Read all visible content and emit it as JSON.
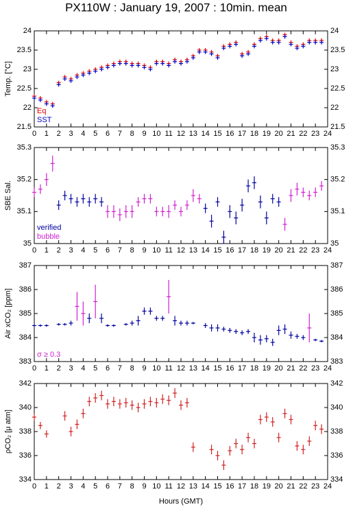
{
  "chart_data": [
    {
      "type": "scatter",
      "title": "PX110W : January 19, 2007 : 10min. mean",
      "ylabel": "Temp. [°C]",
      "x": [
        0,
        0.5,
        1,
        1.5,
        2,
        2.5,
        3,
        3.5,
        4,
        4.5,
        5,
        5.5,
        6,
        6.5,
        7,
        7.5,
        8,
        8.5,
        9,
        9.5,
        10,
        10.5,
        11,
        11.5,
        12,
        12.5,
        13,
        13.5,
        14,
        14.5,
        15,
        15.5,
        16,
        16.5,
        17,
        17.5,
        18,
        18.5,
        19,
        19.5,
        20,
        20.5,
        21,
        21.5,
        22,
        22.5,
        23,
        23.5
      ],
      "xlim": [
        0,
        24
      ],
      "xticks": [
        0,
        1,
        2,
        3,
        4,
        5,
        6,
        7,
        8,
        9,
        10,
        11,
        12,
        13,
        14,
        15,
        16,
        17,
        18,
        19,
        20,
        21,
        22,
        23,
        24
      ],
      "ylim": [
        21.5,
        24
      ],
      "yticks": [
        21.5,
        22,
        22.5,
        23,
        23.5,
        24
      ],
      "series": [
        {
          "name": "Eq",
          "color": "#e00000",
          "values": [
            22.3,
            22.25,
            22.15,
            22.1,
            22.65,
            22.8,
            22.75,
            22.85,
            22.9,
            22.95,
            23.0,
            23.05,
            23.1,
            23.15,
            23.2,
            23.2,
            23.15,
            23.15,
            23.1,
            23.05,
            23.2,
            23.2,
            23.15,
            23.25,
            23.2,
            23.25,
            23.35,
            23.5,
            23.5,
            23.45,
            23.35,
            23.6,
            23.65,
            23.7,
            23.4,
            23.45,
            23.65,
            23.8,
            23.85,
            23.75,
            23.75,
            23.9,
            23.7,
            23.6,
            23.65,
            23.75,
            23.75,
            23.75
          ]
        },
        {
          "name": "SST",
          "color": "#0000c0",
          "values": [
            22.25,
            22.2,
            22.1,
            22.05,
            22.6,
            22.75,
            22.7,
            22.8,
            22.85,
            22.9,
            22.95,
            23.0,
            23.05,
            23.1,
            23.15,
            23.15,
            23.1,
            23.1,
            23.05,
            23.0,
            23.15,
            23.15,
            23.1,
            23.2,
            23.15,
            23.2,
            23.3,
            23.45,
            23.45,
            23.4,
            23.3,
            23.55,
            23.6,
            23.65,
            23.35,
            23.4,
            23.6,
            23.75,
            23.8,
            23.7,
            23.7,
            23.85,
            23.65,
            23.55,
            23.6,
            23.7,
            23.7,
            23.7
          ]
        }
      ]
    },
    {
      "type": "scatter",
      "ylabel": "SBE Sal.",
      "x": [
        0,
        0.5,
        1,
        1.5,
        2,
        2.5,
        3,
        3.5,
        4,
        4.5,
        5,
        5.5,
        6,
        6.5,
        7,
        7.5,
        8,
        8.5,
        9,
        9.5,
        10,
        10.5,
        11,
        11.5,
        12,
        12.5,
        13,
        13.5,
        14,
        14.5,
        15,
        15.5,
        16,
        16.5,
        17,
        17.5,
        18,
        18.5,
        19,
        19.5,
        20,
        20.5,
        21,
        21.5,
        22,
        22.5,
        23,
        23.5
      ],
      "xlim": [
        0,
        24
      ],
      "xticks": [
        0,
        1,
        2,
        3,
        4,
        5,
        6,
        7,
        8,
        9,
        10,
        11,
        12,
        13,
        14,
        15,
        16,
        17,
        18,
        19,
        20,
        21,
        22,
        23,
        24
      ],
      "ylim": [
        35,
        35.3
      ],
      "yticks": [
        35,
        35.1,
        35.2,
        35.3
      ],
      "yerr": [
        0.015,
        0.015,
        0.02,
        0.025,
        0.015,
        0.015,
        0.015,
        0.015,
        0.015,
        0.015,
        0.015,
        0.015,
        0.02,
        0.02,
        0.02,
        0.02,
        0.02,
        0.015,
        0.015,
        0.015,
        0.015,
        0.015,
        0.02,
        0.015,
        0.015,
        0.015,
        0.02,
        0.015,
        0.015,
        0.02,
        0.015,
        0.02,
        0.02,
        0.02,
        0.02,
        0.02,
        0.02,
        0.02,
        0.02,
        0.015,
        0.015,
        0.02,
        0.02,
        0.02,
        0.015,
        0.015,
        0.015,
        0.015
      ],
      "series": [
        {
          "name": "verified",
          "color": "#0000a0",
          "values": [
            null,
            null,
            null,
            null,
            35.12,
            35.15,
            35.14,
            35.13,
            35.14,
            35.13,
            35.14,
            35.13,
            null,
            null,
            null,
            null,
            null,
            null,
            null,
            null,
            null,
            null,
            null,
            null,
            null,
            null,
            null,
            null,
            35.11,
            35.07,
            35.13,
            35.02,
            35.1,
            35.08,
            35.12,
            35.18,
            35.19,
            35.13,
            35.08,
            35.14,
            35.13,
            null,
            null,
            null,
            null,
            null,
            null,
            null
          ]
        },
        {
          "name": "bubble",
          "color": "#d020d0",
          "values": [
            35.16,
            35.17,
            35.2,
            35.25,
            null,
            null,
            null,
            null,
            null,
            null,
            null,
            null,
            35.1,
            35.1,
            35.09,
            35.1,
            35.1,
            35.13,
            35.14,
            35.14,
            35.1,
            35.1,
            35.1,
            35.12,
            35.1,
            35.12,
            35.15,
            35.14,
            null,
            null,
            null,
            null,
            null,
            null,
            null,
            null,
            null,
            null,
            null,
            null,
            null,
            35.06,
            35.15,
            35.17,
            35.16,
            35.15,
            35.16,
            35.18
          ]
        }
      ]
    },
    {
      "type": "scatter",
      "ylabel": "Air xCO₂ [ppm]",
      "x": [
        0,
        0.5,
        1,
        1.5,
        2,
        2.5,
        3,
        3.5,
        4,
        4.5,
        5,
        5.5,
        6,
        6.5,
        7,
        7.5,
        8,
        8.5,
        9,
        9.5,
        10,
        10.5,
        11,
        11.5,
        12,
        12.5,
        13,
        13.5,
        14,
        14.5,
        15,
        15.5,
        16,
        16.5,
        17,
        17.5,
        18,
        18.5,
        19,
        19.5,
        20,
        20.5,
        21,
        21.5,
        22,
        22.5,
        23,
        23.5
      ],
      "xlim": [
        0,
        24
      ],
      "xticks": [
        0,
        1,
        2,
        3,
        4,
        5,
        6,
        7,
        8,
        9,
        10,
        11,
        12,
        13,
        14,
        15,
        16,
        17,
        18,
        19,
        20,
        21,
        22,
        23,
        24
      ],
      "ylim": [
        383,
        387
      ],
      "yticks": [
        383,
        384,
        385,
        386,
        387
      ],
      "yerr": [
        0.05,
        0.05,
        0.05,
        null,
        0.05,
        0.05,
        0.1,
        0.6,
        0.5,
        0.2,
        0.7,
        0.2,
        0.05,
        0.05,
        null,
        0.05,
        0.1,
        0.2,
        0.15,
        0.15,
        0.1,
        0.1,
        0.7,
        0.2,
        0.1,
        0.1,
        0.05,
        null,
        0.1,
        0.15,
        0.15,
        0.1,
        0.1,
        0.1,
        0.1,
        0.1,
        0.2,
        0.2,
        0.15,
        0.15,
        0.2,
        0.2,
        0.15,
        0.1,
        0.1,
        0.6,
        0.05,
        0.05
      ],
      "series": [
        {
          "color": "#0000a0",
          "values": [
            384.5,
            384.5,
            384.5,
            null,
            384.55,
            384.55,
            384.6,
            null,
            null,
            384.8,
            null,
            384.8,
            384.5,
            384.5,
            null,
            384.55,
            384.6,
            384.7,
            385.1,
            385.1,
            384.8,
            384.8,
            null,
            384.7,
            384.6,
            384.6,
            384.6,
            null,
            384.5,
            384.4,
            384.4,
            384.35,
            384.3,
            384.25,
            384.2,
            384.25,
            384.0,
            383.9,
            383.95,
            383.8,
            384.3,
            384.35,
            384.1,
            384.05,
            384.0,
            null,
            383.9,
            383.85
          ]
        },
        {
          "name": "σ ≥ 0.3",
          "color": "#d020d0",
          "values": [
            null,
            null,
            null,
            null,
            null,
            null,
            null,
            385.3,
            385.0,
            null,
            385.5,
            null,
            null,
            null,
            null,
            null,
            null,
            null,
            null,
            null,
            null,
            null,
            385.7,
            null,
            null,
            null,
            null,
            null,
            null,
            null,
            null,
            null,
            null,
            null,
            null,
            null,
            null,
            null,
            null,
            null,
            null,
            null,
            null,
            null,
            null,
            384.4,
            null,
            null
          ]
        }
      ]
    },
    {
      "type": "scatter",
      "ylabel": "ρCO₂ [μ atm]",
      "xlabel": "Hours (GMT)",
      "x": [
        0,
        0.5,
        1,
        1.5,
        2,
        2.5,
        3,
        3.5,
        4,
        4.5,
        5,
        5.5,
        6,
        6.5,
        7,
        7.5,
        8,
        8.5,
        9,
        9.5,
        10,
        10.5,
        11,
        11.5,
        12,
        12.5,
        13,
        13.5,
        14,
        14.5,
        15,
        15.5,
        16,
        16.5,
        17,
        17.5,
        18,
        18.5,
        19,
        19.5,
        20,
        20.5,
        21,
        21.5,
        22,
        22.5,
        23,
        23.5
      ],
      "xlim": [
        0,
        24
      ],
      "xticks": [
        0,
        1,
        2,
        3,
        4,
        5,
        6,
        7,
        8,
        9,
        10,
        11,
        12,
        13,
        14,
        15,
        16,
        17,
        18,
        19,
        20,
        21,
        22,
        23,
        24
      ],
      "ylim": [
        334,
        342
      ],
      "yticks": [
        334,
        336,
        338,
        340,
        342
      ],
      "yerr": [
        0.3,
        0.3,
        0.3,
        null,
        null,
        0.4,
        0.4,
        0.4,
        0.4,
        0.4,
        0.4,
        0.4,
        0.4,
        0.4,
        0.4,
        0.4,
        0.4,
        0.4,
        0.4,
        0.4,
        0.4,
        0.4,
        0.4,
        0.4,
        0.4,
        0.4,
        0.4,
        null,
        null,
        0.4,
        0.4,
        0.4,
        0.4,
        0.4,
        0.4,
        0.4,
        0.4,
        0.4,
        0.4,
        0.4,
        0.4,
        0.4,
        0.4,
        0.4,
        0.4,
        0.4,
        0.4,
        0.4
      ],
      "series": [
        {
          "color": "#d02020",
          "values": [
            339.2,
            338.5,
            337.8,
            null,
            null,
            339.3,
            338.0,
            338.6,
            339.5,
            340.5,
            340.8,
            341.0,
            340.3,
            340.5,
            340.3,
            340.4,
            340.2,
            340.0,
            340.3,
            340.5,
            340.4,
            340.7,
            340.6,
            341.2,
            340.2,
            340.4,
            336.7,
            null,
            null,
            336.5,
            336.0,
            335.2,
            336.4,
            337.0,
            336.5,
            337.5,
            337.0,
            339.0,
            339.2,
            338.8,
            337.5,
            339.5,
            339.0,
            336.8,
            336.5,
            337.2,
            338.5,
            338.2
          ]
        }
      ]
    }
  ]
}
